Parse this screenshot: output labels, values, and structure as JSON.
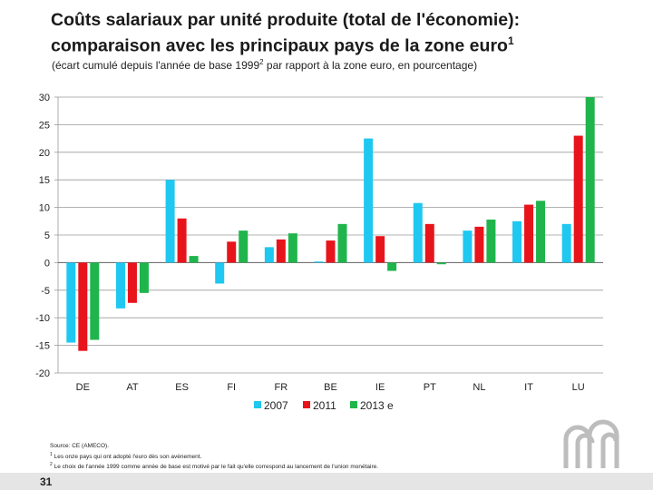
{
  "slide": {
    "title_line1": "Coûts salariaux par unité produite (total de l'économie):",
    "title_line2": "comparaison avec les principaux pays de la zone euro",
    "title_sup": "1",
    "subtitle_pre": "(écart cumulé depuis l'année de base 1999",
    "subtitle_sup": "2",
    "subtitle_post": " par rapport à la zone euro, en pourcentage)",
    "source": "Source: CE (AMECO).",
    "footnote1_mark": "1",
    "footnote1": " Les onze pays qui ont adopté l'euro dès son avènement.",
    "footnote2_mark": "2",
    "footnote2": " Le choix de l'année 1999 comme année de base est motivé par le fait qu'elle correspond au lancement de l'union monétaire.",
    "page_number": "31"
  },
  "colors": {
    "s2007": "#1ec8f0",
    "s2011": "#e8141b",
    "s2013": "#1fb54c",
    "grid": "#9a9a9a",
    "logo": "#bdbdbd"
  },
  "chart_data": {
    "type": "bar",
    "title": "Coûts salariaux par unité produite (total de l'économie): comparaison avec les principaux pays de la zone euro",
    "categories": [
      "DE",
      "AT",
      "ES",
      "FI",
      "FR",
      "BE",
      "IE",
      "PT",
      "NL",
      "IT",
      "LU"
    ],
    "series": [
      {
        "name": "2007",
        "values": [
          -14.5,
          -8.3,
          15.0,
          -3.8,
          2.8,
          0.2,
          22.5,
          10.8,
          5.8,
          7.5,
          7.0
        ]
      },
      {
        "name": "2011",
        "values": [
          -16.0,
          -7.3,
          8.0,
          3.8,
          4.2,
          4.0,
          4.8,
          7.0,
          6.5,
          10.5,
          23.0
        ]
      },
      {
        "name": "2013 e",
        "values": [
          -14.0,
          -5.5,
          1.2,
          5.8,
          5.3,
          7.0,
          -1.5,
          -0.3,
          7.8,
          11.2,
          30.0
        ]
      }
    ],
    "ylim": [
      -20,
      30
    ],
    "yticks": [
      30,
      25,
      20,
      15,
      10,
      5,
      0,
      -5,
      -10,
      -15,
      -20
    ],
    "xlabel": "",
    "ylabel": "",
    "grid": true,
    "legend_position": "bottom"
  }
}
